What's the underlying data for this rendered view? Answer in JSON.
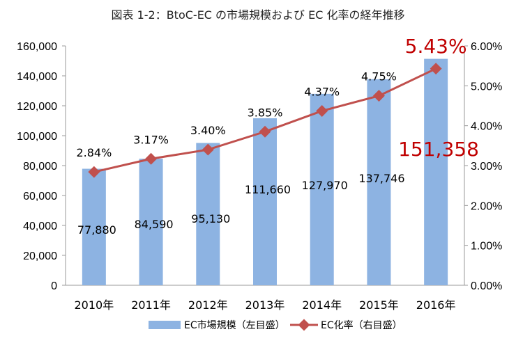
{
  "chart_data": {
    "type": "bar+line",
    "title": "図表 1-2：BtoC-EC の市場規模および EC 化率の経年推移",
    "categories": [
      "2010年",
      "2011年",
      "2012年",
      "2013年",
      "2014年",
      "2015年",
      "2016年"
    ],
    "series": [
      {
        "name": "EC市場規模（左目盛）",
        "type": "bar",
        "axis": "left",
        "values": [
          77880,
          84590,
          95130,
          111660,
          127970,
          137746,
          151358
        ],
        "labels": [
          "77,880",
          "84,590",
          "95,130",
          "111,660",
          "127,970",
          "137,746",
          "151,358"
        ]
      },
      {
        "name": "EC化率（右目盛）",
        "type": "line",
        "axis": "right",
        "values": [
          2.84,
          3.17,
          3.4,
          3.85,
          4.37,
          4.75,
          5.43
        ],
        "labels": [
          "2.84%",
          "3.17%",
          "3.40%",
          "3.85%",
          "4.37%",
          "4.75%",
          "5.43%"
        ]
      }
    ],
    "left_axis": {
      "ylim": [
        0,
        160000
      ],
      "ticks": [
        "0",
        "20,000",
        "40,000",
        "60,000",
        "80,000",
        "100,000",
        "120,000",
        "140,000",
        "160,000"
      ]
    },
    "right_axis": {
      "ylim": [
        0,
        6
      ],
      "ticks": [
        "0.00%",
        "1.00%",
        "2.00%",
        "3.00%",
        "4.00%",
        "5.00%",
        "6.00%"
      ]
    },
    "highlight_index": 6,
    "grid": false,
    "legend": "bottom",
    "colors": {
      "bar": "#8db3e2",
      "line": "#c0504d",
      "highlight_text": "#c00000",
      "axis": "#999999"
    }
  }
}
